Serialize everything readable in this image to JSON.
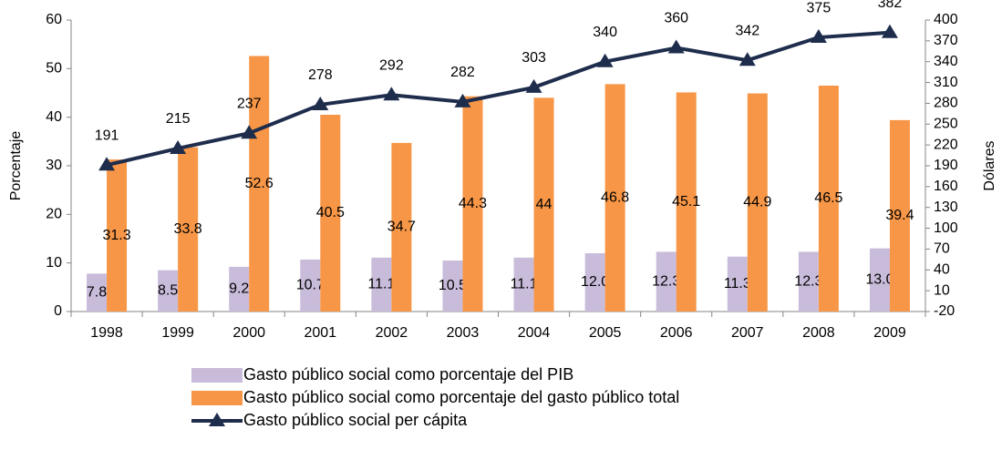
{
  "chart_data": {
    "type": "bar",
    "categories": [
      "1998",
      "1999",
      "2000",
      "2001",
      "2002",
      "2003",
      "2004",
      "2005",
      "2006",
      "2007",
      "2008",
      "2009"
    ],
    "y_label": "Porcentaje",
    "y2_label": "Dólares",
    "ylim": [
      0,
      60
    ],
    "yticks": [
      0,
      10,
      20,
      30,
      40,
      50,
      60
    ],
    "y2lim": [
      -20,
      400
    ],
    "y2ticks": [
      -20,
      10,
      40,
      70,
      100,
      130,
      160,
      190,
      220,
      250,
      280,
      310,
      340,
      370,
      400
    ],
    "grid": false,
    "series": [
      {
        "name": "Gasto público social como porcentaje del PIB",
        "type": "bar",
        "color": "#c9bcdb",
        "values": [
          7.8,
          8.5,
          9.2,
          10.7,
          11.1,
          10.5,
          11.1,
          12.0,
          12.3,
          11.3,
          12.3,
          13.0
        ],
        "value_labels": [
          "7.8",
          "8.5",
          "9.2",
          "10.7",
          "11.1",
          "10.5",
          "11.1",
          "12.0",
          "12.3",
          "11.3",
          "12.3",
          "13.0"
        ]
      },
      {
        "name": "Gasto público social como porcentaje del gasto público total",
        "type": "bar",
        "color": "#f79646",
        "values": [
          31.3,
          33.8,
          52.6,
          40.5,
          34.7,
          44.3,
          44,
          46.8,
          45.1,
          44.9,
          46.5,
          39.4
        ]
      },
      {
        "name": "Gasto público social per cápita",
        "type": "line",
        "axis": "y2",
        "color": "#1f2d4d",
        "values": [
          191,
          215,
          237,
          278,
          292,
          282,
          303,
          340,
          360,
          342,
          375,
          382
        ]
      }
    ]
  }
}
